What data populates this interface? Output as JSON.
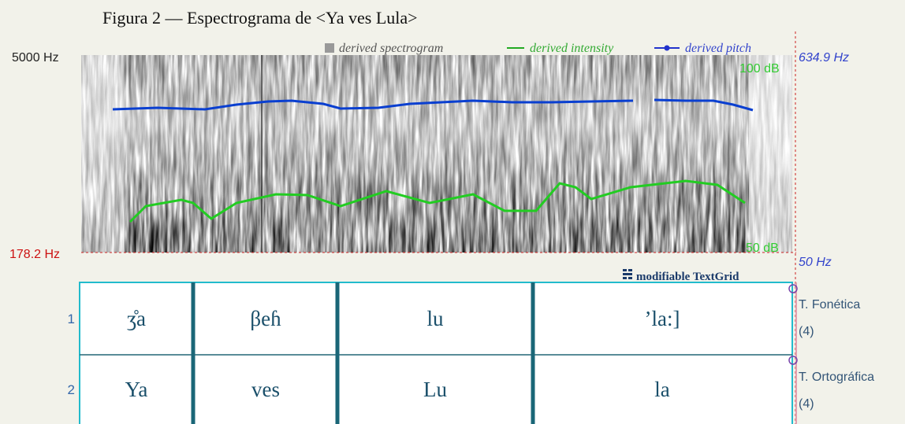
{
  "title": "Figura 2 — Espectrograma de <Ya ves Lula>",
  "spectrogram": {
    "top_label": "5000 Hz",
    "bottom_label": "178.2 Hz",
    "legend": [
      "derived spectrogram",
      "derived intensity",
      "derived pitch"
    ],
    "intensity_top": "100 dB",
    "intensity_bottom": "50 dB",
    "pitch_top": "634.9 Hz",
    "pitch_bottom": "50 Hz"
  },
  "textgrid": {
    "label": "modifiable TextGrid",
    "tiers": [
      {
        "number": 1,
        "name": "T. Fonética",
        "count": "(4)",
        "intervals": [
          "ʒ̊a",
          "βeɦ",
          "lu",
          "’la:]"
        ]
      },
      {
        "number": 2,
        "name": "T. Ortográfica",
        "count": "(4)",
        "intervals": [
          "Ya",
          "ves",
          "Lu",
          "la"
        ]
      }
    ]
  }
}
